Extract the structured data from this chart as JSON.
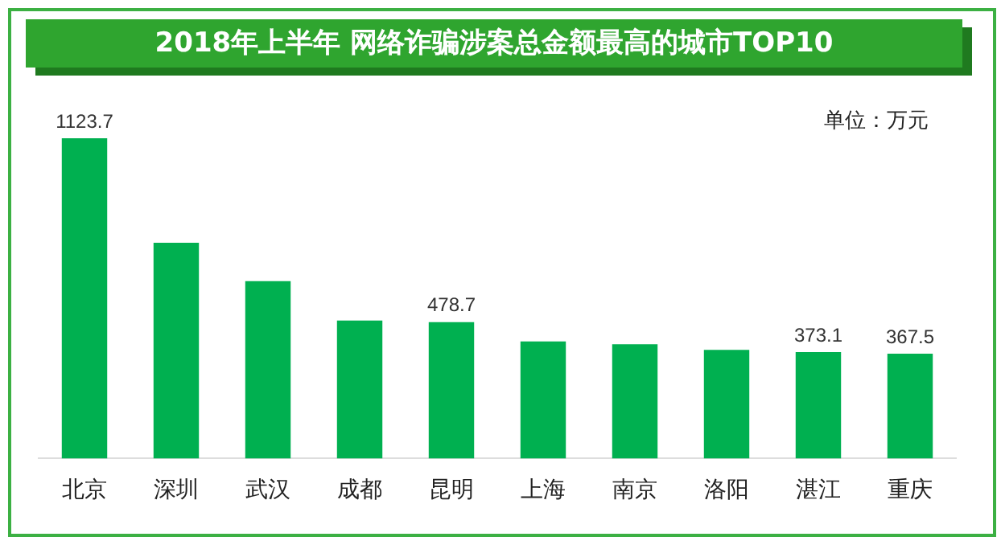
{
  "chart_data": {
    "type": "bar",
    "title": "2018年上半年 网络诈骗涉案总金额最高的城市TOP10",
    "categories": [
      "北京",
      "深圳",
      "武汉",
      "成都",
      "昆明",
      "上海",
      "南京",
      "洛阳",
      "湛江",
      "重庆"
    ],
    "values": [
      1123.7,
      757,
      622,
      484,
      478.7,
      411,
      401,
      381,
      373.1,
      367.5
    ],
    "value_labels": [
      "1123.7",
      null,
      null,
      null,
      "478.7",
      null,
      null,
      null,
      "373.1",
      "367.5"
    ],
    "color": "#00b050",
    "annotations": [
      "单位：万元"
    ],
    "grid": false,
    "legend": false
  }
}
